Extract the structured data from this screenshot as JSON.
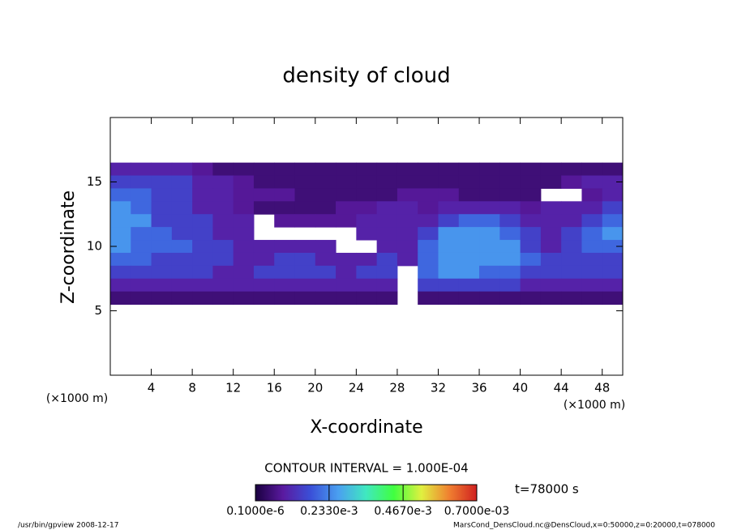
{
  "chart_data": {
    "type": "contour",
    "title": "density of cloud",
    "x_label": "X-coordinate",
    "y_label": "Z-coordinate",
    "x_unit": "(×1000 m)",
    "x_unit_right": "(×1000 m)",
    "contour_interval": "CONTOUR INTERVAL = 1.000E-04",
    "time_label": "t=78000 s",
    "footer_left": "/usr/bin/gpview  2008-12-17",
    "footer_right": "MarsCond_DensCloud.nc@DensCloud,x=0:50000,z=0:20000,t=078000",
    "xlim": [
      0,
      50
    ],
    "ylim": [
      0,
      20
    ],
    "xticks": [
      4,
      8,
      12,
      16,
      20,
      24,
      28,
      32,
      36,
      40,
      44,
      48
    ],
    "yticks": [
      5,
      10,
      15
    ],
    "colormap": [
      "#1a0040",
      "#5a1aa0",
      "#3a50d8",
      "#4aa0f0",
      "#40e8c0",
      "#40ff40",
      "#e0f040",
      "#f08030",
      "#d02020"
    ],
    "clim": [
      0,
      0.0007
    ],
    "colorbar_ticks": [
      {
        "value": 1e-07,
        "label": "0.1000e-6"
      },
      {
        "value": 0.000233,
        "label": "0.2330e-3"
      },
      {
        "value": 0.000467,
        "label": "0.4670e-3"
      },
      {
        "value": 0.0007,
        "label": "0.7000e-03"
      }
    ],
    "field": {
      "x": [
        1,
        3,
        5,
        7,
        9,
        11,
        13,
        15,
        17,
        19,
        21,
        23,
        25,
        27,
        29,
        31,
        33,
        35,
        37,
        39,
        41,
        43,
        45,
        47,
        49
      ],
      "z": [
        16,
        15,
        14,
        13,
        12,
        11,
        10,
        9,
        8,
        7,
        6
      ],
      "values": [
        [
          0.0001,
          0.0001,
          0.0001,
          0.0001,
          8e-05,
          5e-05,
          5e-05,
          5e-05,
          5e-05,
          5e-05,
          5e-05,
          5e-05,
          5e-05,
          5e-05,
          5e-05,
          5e-05,
          5e-05,
          5e-05,
          5e-05,
          5e-05,
          5e-05,
          5e-05,
          5e-05,
          5e-05,
          5e-05
        ],
        [
          0.00015,
          0.00015,
          0.00015,
          0.00015,
          0.0001,
          0.0001,
          8e-05,
          5e-05,
          5e-05,
          5e-05,
          5e-05,
          5e-05,
          5e-05,
          5e-05,
          5e-05,
          5e-05,
          5e-05,
          5e-05,
          5e-05,
          5e-05,
          5e-05,
          5e-05,
          8e-05,
          0.0001,
          0.0001
        ],
        [
          0.0002,
          0.0002,
          0.00015,
          0.00015,
          0.0001,
          0.0001,
          8e-05,
          8e-05,
          8e-05,
          5e-05,
          5e-05,
          5e-05,
          5e-05,
          5e-05,
          8e-05,
          8e-05,
          8e-05,
          5e-05,
          5e-05,
          5e-05,
          5e-05,
          null,
          null,
          8e-05,
          0.0001
        ],
        [
          0.00025,
          0.0002,
          0.00015,
          0.00015,
          0.0001,
          0.0001,
          8e-05,
          5e-05,
          5e-05,
          5e-05,
          5e-05,
          8e-05,
          8e-05,
          0.0001,
          0.0001,
          8e-05,
          0.0001,
          0.0001,
          0.0001,
          0.0001,
          8e-05,
          0.0001,
          0.0001,
          0.0001,
          0.00015
        ],
        [
          0.00025,
          0.00025,
          0.00015,
          0.00015,
          0.00015,
          0.0001,
          0.0001,
          null,
          8e-05,
          8e-05,
          8e-05,
          8e-05,
          0.0001,
          0.0001,
          0.0001,
          0.0001,
          0.00015,
          0.0002,
          0.0002,
          0.00015,
          0.0001,
          0.0001,
          0.0001,
          0.00015,
          0.0002
        ],
        [
          0.00025,
          0.0002,
          0.0002,
          0.00015,
          0.00015,
          0.0001,
          0.0001,
          null,
          null,
          null,
          null,
          null,
          0.0001,
          0.0001,
          0.0001,
          0.00015,
          0.00025,
          0.00025,
          0.00025,
          0.0002,
          0.00015,
          0.0001,
          0.00015,
          0.0002,
          0.00025
        ],
        [
          0.00025,
          0.0002,
          0.0002,
          0.0002,
          0.00015,
          0.00015,
          0.0001,
          0.0001,
          0.0001,
          0.0001,
          0.0001,
          null,
          null,
          0.0001,
          0.0001,
          0.0002,
          0.00025,
          0.00025,
          0.00025,
          0.00025,
          0.00015,
          0.0001,
          0.00015,
          0.0002,
          0.0002
        ],
        [
          0.0002,
          0.0002,
          0.00015,
          0.00015,
          0.00015,
          0.00015,
          0.0001,
          0.0001,
          0.00015,
          0.00015,
          0.0001,
          0.0001,
          0.0001,
          0.00015,
          0.0001,
          0.0002,
          0.00025,
          0.00025,
          0.00025,
          0.00025,
          0.0002,
          0.00015,
          0.00015,
          0.00015,
          0.00015
        ],
        [
          0.00015,
          0.00015,
          0.00015,
          0.00015,
          0.00015,
          0.0001,
          0.0001,
          0.00015,
          0.00015,
          0.00015,
          0.00015,
          0.0001,
          0.00015,
          0.00015,
          null,
          0.0002,
          0.00025,
          0.00025,
          0.0002,
          0.0002,
          0.00015,
          0.00015,
          0.00015,
          0.00015,
          0.00015
        ],
        [
          0.0001,
          0.0001,
          0.0001,
          0.0001,
          0.0001,
          0.0001,
          0.0001,
          0.0001,
          0.0001,
          0.0001,
          0.0001,
          0.0001,
          0.0001,
          0.0001,
          null,
          0.00015,
          0.00015,
          0.00015,
          0.00015,
          0.00015,
          0.0001,
          0.0001,
          0.0001,
          0.0001,
          0.0001
        ],
        [
          5e-05,
          5e-05,
          5e-05,
          5e-05,
          5e-05,
          5e-05,
          5e-05,
          5e-05,
          5e-05,
          5e-05,
          5e-05,
          5e-05,
          5e-05,
          5e-05,
          null,
          5e-05,
          5e-05,
          5e-05,
          5e-05,
          5e-05,
          5e-05,
          5e-05,
          5e-05,
          5e-05,
          5e-05
        ]
      ]
    }
  }
}
